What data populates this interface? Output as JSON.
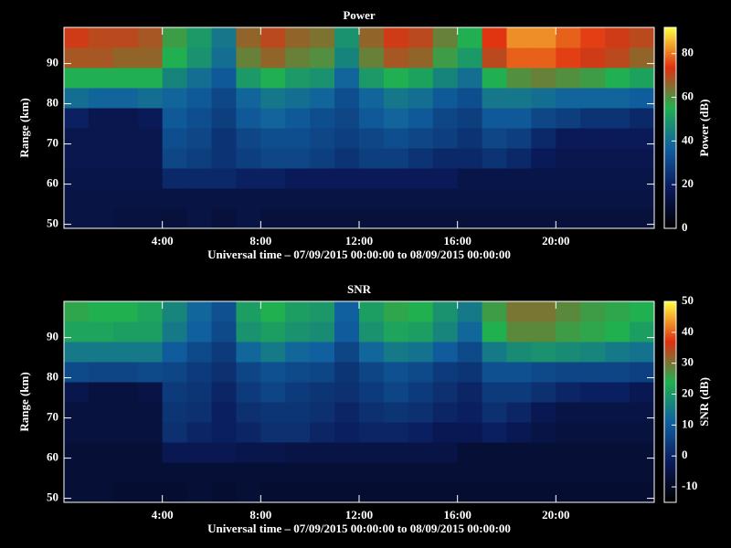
{
  "chart_data": [
    {
      "type": "heatmap",
      "title": "Power",
      "xlabel": "Universal time – 07/09/2015 00:00:00 to 08/09/2015 00:00:00",
      "ylabel": "Range (km)",
      "zlabel": "Power (dB)",
      "x_bins": [
        0,
        1,
        2,
        3,
        4,
        5,
        6,
        7,
        8,
        9,
        10,
        11,
        12,
        13,
        14,
        15,
        16,
        17,
        18,
        19,
        20,
        21,
        22,
        23,
        24
      ],
      "y_bins": [
        49,
        54,
        59,
        64,
        69,
        74,
        79,
        84,
        89,
        94,
        99
      ],
      "z": [
        [
          14,
          14,
          13,
          13,
          12,
          14,
          12,
          14,
          12,
          12,
          12,
          12,
          12,
          12,
          12,
          12,
          12,
          12,
          12,
          12,
          12,
          12,
          12,
          12
        ],
        [
          14,
          14,
          14,
          14,
          14,
          14,
          14,
          14,
          14,
          14,
          14,
          14,
          14,
          14,
          14,
          14,
          14,
          14,
          14,
          14,
          14,
          14,
          14,
          14
        ],
        [
          15,
          15,
          15,
          15,
          22,
          22,
          22,
          20,
          20,
          18,
          18,
          18,
          18,
          18,
          18,
          18,
          15,
          15,
          15,
          15,
          15,
          15,
          15,
          15
        ],
        [
          16,
          16,
          16,
          16,
          30,
          28,
          25,
          28,
          30,
          30,
          28,
          25,
          28,
          28,
          25,
          22,
          22,
          25,
          22,
          18,
          16,
          16,
          16,
          16
        ],
        [
          16,
          16,
          16,
          16,
          32,
          30,
          25,
          30,
          32,
          32,
          30,
          28,
          30,
          32,
          30,
          28,
          25,
          30,
          28,
          22,
          18,
          18,
          18,
          18
        ],
        [
          20,
          16,
          16,
          18,
          35,
          32,
          28,
          35,
          38,
          35,
          32,
          30,
          35,
          38,
          35,
          30,
          28,
          35,
          35,
          30,
          28,
          25,
          25,
          22
        ],
        [
          40,
          38,
          38,
          40,
          38,
          35,
          30,
          38,
          42,
          40,
          38,
          32,
          38,
          42,
          40,
          35,
          32,
          42,
          42,
          40,
          38,
          38,
          38,
          36
        ],
        [
          55,
          55,
          55,
          55,
          45,
          40,
          35,
          50,
          55,
          50,
          48,
          38,
          50,
          55,
          52,
          45,
          40,
          55,
          60,
          62,
          60,
          58,
          55,
          52
        ],
        [
          68,
          68,
          66,
          66,
          55,
          48,
          40,
          62,
          66,
          62,
          60,
          45,
          62,
          68,
          66,
          58,
          50,
          70,
          78,
          78,
          75,
          72,
          70,
          66
        ],
        [
          72,
          70,
          70,
          68,
          58,
          50,
          42,
          66,
          70,
          66,
          64,
          48,
          66,
          72,
          70,
          62,
          55,
          74,
          82,
          82,
          78,
          75,
          72,
          70
        ]
      ],
      "xlim": [
        0,
        24
      ],
      "ylim": [
        49,
        99
      ],
      "zlim": [
        0,
        92
      ],
      "xticks": [
        {
          "value": 4,
          "label": "4:00"
        },
        {
          "value": 8,
          "label": "8:00"
        },
        {
          "value": 12,
          "label": "12:00"
        },
        {
          "value": 16,
          "label": "16:00"
        },
        {
          "value": 20,
          "label": "20:00"
        }
      ],
      "yticks": [
        50,
        60,
        70,
        80,
        90
      ],
      "zticks": [
        0,
        20,
        40,
        60,
        80
      ],
      "colorscale": [
        "#000000",
        "#0a1a5a",
        "#1060a0",
        "#20b050",
        "#e03010",
        "#ffff40"
      ]
    },
    {
      "type": "heatmap",
      "title": "SNR",
      "xlabel": "Universal time – 07/09/2015 00:00:00 to 08/09/2015 00:00:00",
      "ylabel": "Range (km)",
      "zlabel": "SNR (dB)",
      "x_bins": [
        0,
        1,
        2,
        3,
        4,
        5,
        6,
        7,
        8,
        9,
        10,
        11,
        12,
        13,
        14,
        15,
        16,
        17,
        18,
        19,
        20,
        21,
        22,
        23,
        24
      ],
      "y_bins": [
        49,
        54,
        59,
        64,
        69,
        74,
        79,
        84,
        89,
        94,
        99
      ],
      "z": [
        [
          -7,
          -7,
          -8,
          -8,
          -8,
          -7,
          -8,
          -7,
          -8,
          -8,
          -8,
          -8,
          -8,
          -8,
          -8,
          -8,
          -8,
          -8,
          -8,
          -8,
          -8,
          -8,
          -8,
          -8
        ],
        [
          -7,
          -7,
          -7,
          -7,
          -7,
          -7,
          -7,
          -7,
          -7,
          -7,
          -7,
          -7,
          -7,
          -7,
          -7,
          -7,
          -7,
          -7,
          -7,
          -7,
          -7,
          -7,
          -7,
          -7
        ],
        [
          -7,
          -7,
          -7,
          -7,
          -3,
          -3,
          -3,
          -4,
          -4,
          -5,
          -5,
          -5,
          -5,
          -5,
          -5,
          -5,
          -7,
          -7,
          -7,
          -7,
          -7,
          -7,
          -7,
          -7
        ],
        [
          -6,
          -6,
          -6,
          -6,
          2,
          0,
          -1,
          0,
          2,
          2,
          0,
          -1,
          0,
          0,
          -1,
          -3,
          -3,
          -1,
          -3,
          -5,
          -6,
          -6,
          -6,
          -6
        ],
        [
          -6,
          -6,
          -6,
          -6,
          3,
          2,
          -1,
          2,
          3,
          3,
          2,
          0,
          2,
          3,
          2,
          0,
          -1,
          2,
          0,
          -3,
          -5,
          -5,
          -5,
          -5
        ],
        [
          -4,
          -6,
          -6,
          -5,
          4,
          3,
          0,
          4,
          6,
          4,
          3,
          2,
          4,
          6,
          4,
          2,
          0,
          4,
          4,
          2,
          0,
          -1,
          -1,
          -3
        ],
        [
          7,
          6,
          6,
          7,
          6,
          4,
          2,
          6,
          8,
          7,
          6,
          3,
          6,
          8,
          7,
          4,
          3,
          8,
          8,
          7,
          6,
          6,
          6,
          5
        ],
        [
          15,
          15,
          15,
          15,
          10,
          7,
          4,
          12,
          15,
          12,
          11,
          6,
          12,
          15,
          14,
          10,
          7,
          15,
          18,
          19,
          18,
          17,
          15,
          14
        ],
        [
          22,
          22,
          21,
          21,
          15,
          11,
          7,
          19,
          21,
          19,
          18,
          10,
          19,
          22,
          21,
          17,
          12,
          24,
          28,
          28,
          26,
          25,
          24,
          21
        ],
        [
          25,
          24,
          24,
          22,
          17,
          12,
          8,
          21,
          24,
          21,
          20,
          11,
          21,
          25,
          24,
          19,
          15,
          26,
          30,
          30,
          28,
          26,
          25,
          24
        ]
      ],
      "xlim": [
        0,
        24
      ],
      "ylim": [
        49,
        99
      ],
      "zlim": [
        -15,
        50
      ],
      "xticks": [
        {
          "value": 4,
          "label": "4:00"
        },
        {
          "value": 8,
          "label": "8:00"
        },
        {
          "value": 12,
          "label": "12:00"
        },
        {
          "value": 16,
          "label": "16:00"
        },
        {
          "value": 20,
          "label": "20:00"
        }
      ],
      "yticks": [
        50,
        60,
        70,
        80,
        90
      ],
      "zticks": [
        -10,
        0,
        10,
        20,
        30,
        40,
        50
      ],
      "colorscale": [
        "#000000",
        "#0a1a5a",
        "#1060a0",
        "#20b050",
        "#e03010",
        "#ffff40"
      ]
    }
  ]
}
